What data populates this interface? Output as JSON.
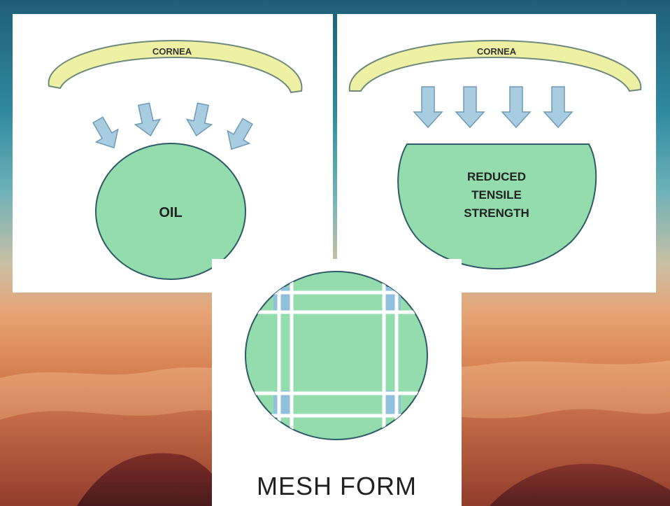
{
  "diagram": {
    "panel_oil": {
      "cornea_label": "CORNEA",
      "shape_label": "OIL"
    },
    "panel_tensile": {
      "cornea_label": "CORNEA",
      "shape_label_lines": [
        "REDUCED",
        "TENSILE",
        "STRENGTH"
      ]
    },
    "panel_mesh": {
      "caption": "MESH FORM"
    }
  },
  "colors": {
    "cornea_fill": "#eef0a4",
    "cornea_stroke": "#6f8a7a",
    "arrow_fill": "#a9cde0",
    "arrow_stroke": "#6f9ab5",
    "shape_fill": "#93dcab",
    "shape_stroke": "#2f5a6a",
    "mesh_line": "#ffffff",
    "mesh_corner": "#8fc0de"
  }
}
